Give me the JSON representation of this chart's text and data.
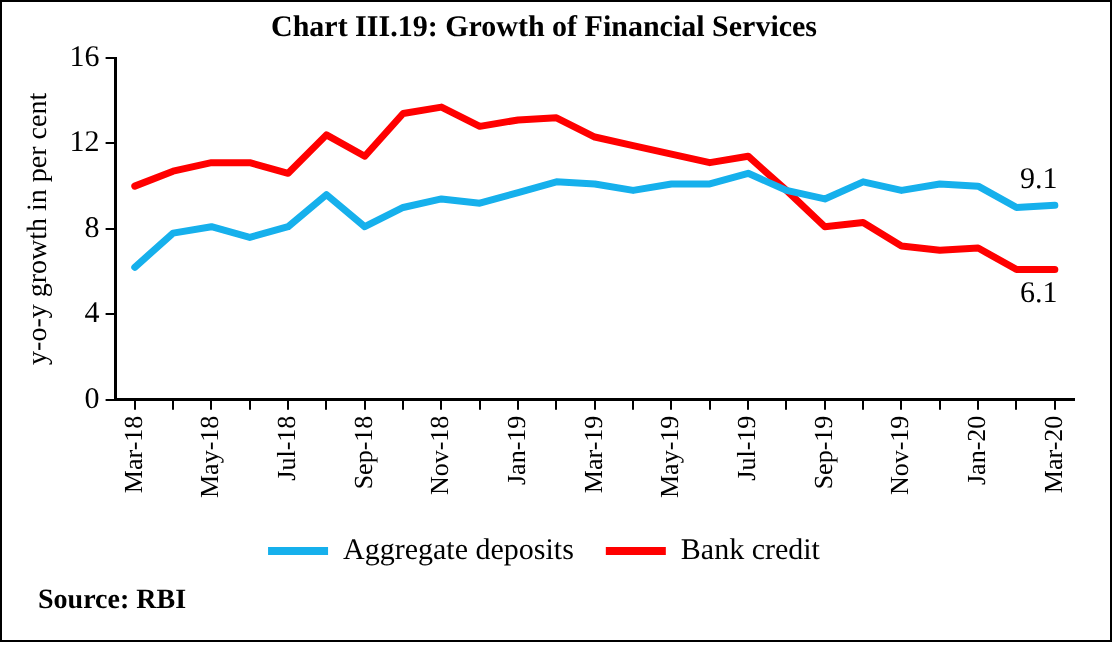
{
  "chart_data": {
    "type": "line",
    "title": "Chart III.19: Growth of Financial Services",
    "ylabel": "y-o-y growth in per cent",
    "categories": [
      "Mar-18",
      null,
      "May-18",
      null,
      "Jul-18",
      null,
      "Sep-18",
      null,
      "Nov-18",
      null,
      "Jan-19",
      null,
      "Mar-19",
      null,
      "May-19",
      null,
      "Jul-19",
      null,
      "Sep-19",
      null,
      "Nov-19",
      null,
      "Jan-20",
      null,
      "Mar-20"
    ],
    "series": [
      {
        "name": "Aggregate deposits",
        "color": "#16b0ec",
        "values": [
          6.2,
          7.8,
          8.1,
          7.6,
          8.1,
          9.6,
          8.1,
          9.0,
          9.4,
          9.2,
          9.7,
          10.2,
          10.1,
          9.8,
          10.1,
          10.1,
          10.6,
          9.8,
          9.4,
          10.2,
          9.8,
          10.1,
          10.0,
          9.0,
          9.1
        ]
      },
      {
        "name": "Bank credit",
        "color": "#ff0000",
        "values": [
          10.0,
          10.7,
          11.1,
          11.1,
          10.6,
          12.4,
          11.4,
          13.4,
          13.7,
          12.8,
          13.1,
          13.2,
          12.3,
          11.9,
          11.5,
          11.1,
          11.4,
          9.8,
          8.1,
          8.3,
          7.2,
          7.0,
          7.1,
          6.1,
          6.1
        ]
      }
    ],
    "ylim": [
      0,
      16
    ],
    "yticks": [
      0,
      4,
      8,
      12,
      16
    ],
    "grid": false,
    "legend": "bottom",
    "marker": "none",
    "line_style": "solid",
    "annotations": [
      {
        "text": "9.1",
        "x": "Mar-20",
        "y": 9.1
      },
      {
        "text": "6.1",
        "x": "Mar-20",
        "y": 6.1
      },
      "Source: RBI"
    ]
  }
}
